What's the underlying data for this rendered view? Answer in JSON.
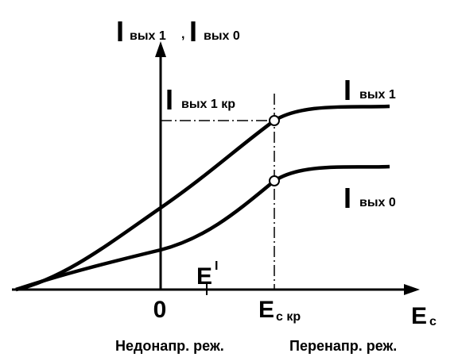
{
  "y_axis": {
    "label1": {
      "main": "I",
      "sub": "вых 1"
    },
    "separator": ",",
    "label2": {
      "main": "I",
      "sub": "вых 0"
    }
  },
  "critical_label": {
    "main": "I",
    "sub": "вых 1 кр"
  },
  "curves": [
    {
      "label": {
        "main": "I",
        "sub": "вых 1"
      }
    },
    {
      "label": {
        "main": "I",
        "sub": "вых 0"
      }
    }
  ],
  "x_axis": {
    "prime": {
      "main": "E",
      "sup": "I"
    },
    "origin": "0",
    "point": {
      "main": "E",
      "sub": "с кр"
    },
    "label": {
      "main": "E",
      "sub": "с"
    }
  },
  "regimes": [
    "Недонапр. реж.",
    "Перенапр. реж."
  ]
}
